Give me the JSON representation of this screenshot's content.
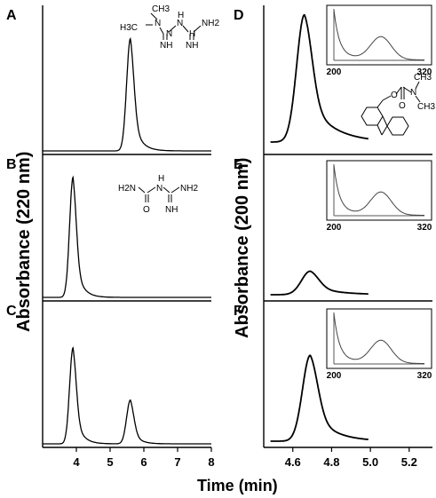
{
  "figure": {
    "left_ylabel": "Absorbance (220 nm)",
    "right_ylabel": "Absorbance (200 nm)",
    "xlabel": "Time (min)",
    "chem": {
      "metformin": [
        "CH3",
        "H3C",
        "N",
        "N",
        "H",
        "N",
        "H",
        "NH2",
        "NH",
        "NH"
      ],
      "guanylurea": [
        "H2N",
        "N",
        "H",
        "NH2",
        "O",
        "NH"
      ],
      "fmoc": [
        "O",
        "N",
        "CH3",
        "CH3",
        "O"
      ]
    }
  },
  "chart_data": [
    {
      "panel": "A",
      "type": "line",
      "xlim": [
        3,
        8
      ],
      "ylim": [
        0,
        1
      ],
      "x_ticks": [],
      "series": [
        {
          "peaks": [
            {
              "center": 5.6,
              "height": 0.77,
              "width": 0.11,
              "tail": 0.22
            }
          ]
        }
      ]
    },
    {
      "panel": "B",
      "type": "line",
      "xlim": [
        3,
        8
      ],
      "ylim": [
        0,
        1
      ],
      "x_ticks": [],
      "series": [
        {
          "peaks": [
            {
              "center": 3.9,
              "height": 0.85,
              "width": 0.1,
              "tail": 0.2
            }
          ]
        }
      ]
    },
    {
      "panel": "C",
      "type": "line",
      "xlim": [
        3,
        8
      ],
      "ylim": [
        0,
        1
      ],
      "x_ticks": [
        "4",
        "5",
        "6",
        "7",
        "8"
      ],
      "series": [
        {
          "peaks": [
            {
              "center": 3.9,
              "height": 0.68,
              "width": 0.1,
              "tail": 0.2
            },
            {
              "center": 5.6,
              "height": 0.31,
              "width": 0.11,
              "tail": 0.2
            }
          ]
        }
      ]
    },
    {
      "panel": "D",
      "type": "line",
      "xlim": [
        4.45,
        5.32
      ],
      "ylim": [
        0,
        1
      ],
      "x_ticks": [],
      "series": [
        {
          "peaks": [
            {
              "center": 4.66,
              "height": 0.93,
              "width": 0.04,
              "tail": 0.12
            }
          ]
        }
      ],
      "inset": {
        "xlim": [
          200,
          320
        ],
        "x_ticks": [
          "200",
          "320"
        ]
      }
    },
    {
      "panel": "E",
      "type": "line",
      "xlim": [
        4.45,
        5.32
      ],
      "ylim": [
        0,
        1
      ],
      "x_ticks": [],
      "series": [
        {
          "peaks": [
            {
              "center": 4.69,
              "height": 0.17,
              "width": 0.045,
              "tail": 0.12
            }
          ]
        }
      ],
      "inset": {
        "xlim": [
          200,
          320
        ],
        "x_ticks": [
          "200",
          "320"
        ]
      }
    },
    {
      "panel": "F",
      "type": "line",
      "xlim": [
        4.45,
        5.32
      ],
      "ylim": [
        0,
        1
      ],
      "x_ticks": [
        "4.6",
        "4.8",
        "5.0",
        "5.2"
      ],
      "series": [
        {
          "peaks": [
            {
              "center": 4.69,
              "height": 0.62,
              "width": 0.04,
              "tail": 0.1
            }
          ]
        }
      ],
      "inset": {
        "xlim": [
          200,
          320
        ],
        "x_ticks": [
          "200",
          "320"
        ]
      }
    }
  ]
}
